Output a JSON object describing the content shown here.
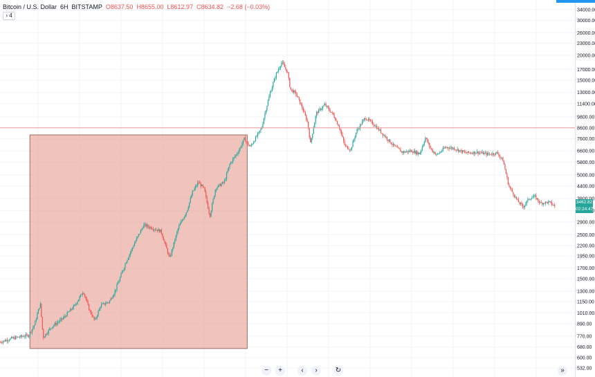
{
  "header": {
    "symbol": "Bitcoin / U.S. Dollar",
    "interval": "6H",
    "exchange": "BITSTAMP",
    "open": "O8637.50",
    "high": "H8655.00",
    "low": "L8612.97",
    "close": "C8634.82",
    "change": "−2.68 (−0.03%)",
    "collapse_label": "› 4"
  },
  "price_badge": {
    "value": "3462.82",
    "countdown": "02:24:47",
    "color": "#26a69a"
  },
  "toolbar": {
    "zoom_out": "−",
    "zoom_in": "+",
    "scroll_left": "‹",
    "scroll_right": "›",
    "reset": "↻",
    "go_to_realtime": "»"
  },
  "colors": {
    "up": "#26a69a",
    "down": "#ef5350",
    "highlight_fill": "#e8a598",
    "highlight_stroke": "#a06a5f",
    "horizontal_line": "#ef9a9a"
  },
  "chart_data": {
    "type": "candlestick",
    "scale": "log",
    "y_ticks": [
      532,
      600,
      680,
      770,
      890,
      1010,
      1150,
      1300,
      1500,
      1700,
      1950,
      2200,
      2500,
      2900,
      3300,
      3800,
      4400,
      5000,
      5800,
      6600,
      7600,
      8600,
      9800,
      11400,
      13000,
      15000,
      17000,
      20000,
      23000,
      26000,
      30000,
      34000
    ],
    "y_tick_labels": [
      "532.00",
      "600.00",
      "680.00",
      "770.00",
      "890.00",
      "1010.00",
      "1150.00",
      "1300.00",
      "1500.00",
      "1700.00",
      "1950.00",
      "2200.00",
      "2500.00",
      "2900.00",
      "3300.00",
      "3800.00",
      "4400.00",
      "5000.00",
      "5800.00",
      "6600.00",
      "7600.00",
      "8600.00",
      "9800.00",
      "11400.00",
      "13000.00",
      "15000.00",
      "17000.00",
      "20000.00",
      "23000.00",
      "26000.00",
      "30000.00",
      "34000.00"
    ],
    "ylim": [
      480,
      38000
    ],
    "horizontal_line": 8634.82,
    "highlight_box": {
      "x_start": 0.052,
      "x_end": 0.43,
      "y_low": 668,
      "y_high": 7950
    },
    "price_path": [
      [
        0.0,
        720
      ],
      [
        0.02,
        750
      ],
      [
        0.05,
        780
      ],
      [
        0.06,
        880
      ],
      [
        0.07,
        1130
      ],
      [
        0.075,
        760
      ],
      [
        0.09,
        860
      ],
      [
        0.11,
        950
      ],
      [
        0.13,
        1100
      ],
      [
        0.145,
        1300
      ],
      [
        0.155,
        1050
      ],
      [
        0.165,
        920
      ],
      [
        0.175,
        1100
      ],
      [
        0.19,
        1150
      ],
      [
        0.2,
        1300
      ],
      [
        0.21,
        1550
      ],
      [
        0.22,
        1850
      ],
      [
        0.235,
        2300
      ],
      [
        0.25,
        2800
      ],
      [
        0.265,
        2700
      ],
      [
        0.28,
        2600
      ],
      [
        0.295,
        1900
      ],
      [
        0.31,
        2700
      ],
      [
        0.325,
        3300
      ],
      [
        0.335,
        4100
      ],
      [
        0.345,
        4600
      ],
      [
        0.355,
        4250
      ],
      [
        0.365,
        3100
      ],
      [
        0.375,
        4300
      ],
      [
        0.39,
        4600
      ],
      [
        0.4,
        5700
      ],
      [
        0.415,
        6600
      ],
      [
        0.425,
        7600
      ],
      [
        0.435,
        6900
      ],
      [
        0.445,
        7700
      ],
      [
        0.455,
        8600
      ],
      [
        0.46,
        10000
      ],
      [
        0.47,
        13000
      ],
      [
        0.48,
        16000
      ],
      [
        0.49,
        18500
      ],
      [
        0.5,
        16500
      ],
      [
        0.505,
        13500
      ],
      [
        0.515,
        12800
      ],
      [
        0.525,
        11000
      ],
      [
        0.535,
        9200
      ],
      [
        0.54,
        7200
      ],
      [
        0.55,
        10200
      ],
      [
        0.565,
        11300
      ],
      [
        0.58,
        10000
      ],
      [
        0.59,
        8700
      ],
      [
        0.6,
        7000
      ],
      [
        0.61,
        6700
      ],
      [
        0.62,
        8300
      ],
      [
        0.635,
        9700
      ],
      [
        0.65,
        9000
      ],
      [
        0.67,
        7800
      ],
      [
        0.685,
        7000
      ],
      [
        0.7,
        6500
      ],
      [
        0.715,
        6600
      ],
      [
        0.73,
        6400
      ],
      [
        0.74,
        7700
      ],
      [
        0.75,
        6700
      ],
      [
        0.76,
        6300
      ],
      [
        0.775,
        6900
      ],
      [
        0.79,
        6800
      ],
      [
        0.81,
        6450
      ],
      [
        0.83,
        6500
      ],
      [
        0.85,
        6350
      ],
      [
        0.865,
        6450
      ],
      [
        0.875,
        5900
      ],
      [
        0.885,
        4400
      ],
      [
        0.9,
        3700
      ],
      [
        0.91,
        3450
      ],
      [
        0.92,
        3800
      ],
      [
        0.93,
        3900
      ],
      [
        0.94,
        3600
      ],
      [
        0.955,
        3650
      ],
      [
        0.965,
        3480
      ]
    ]
  }
}
